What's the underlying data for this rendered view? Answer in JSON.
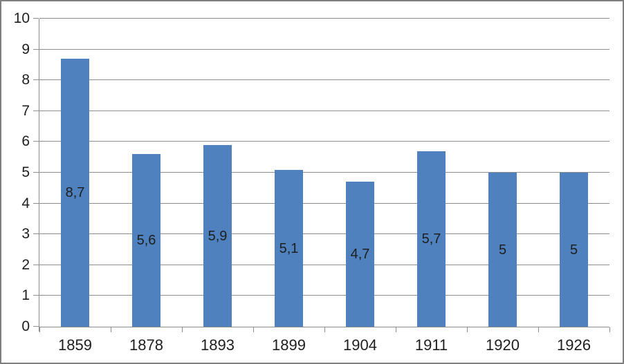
{
  "chart_data": {
    "type": "bar",
    "title": "",
    "xlabel": "",
    "ylabel": "",
    "categories": [
      "1859",
      "1878",
      "1893",
      "1899",
      "1904",
      "1911",
      "1920",
      "1926"
    ],
    "values": [
      8.7,
      5.6,
      5.9,
      5.1,
      4.7,
      5.7,
      5,
      5
    ],
    "data_labels": [
      "8,7",
      "5,6",
      "5,9",
      "5,1",
      "4,7",
      "5,7",
      "5",
      "5"
    ],
    "data_label_position": "center-inside-bar",
    "ylim": [
      0,
      10
    ],
    "y_ticks": [
      0,
      1,
      2,
      3,
      4,
      5,
      6,
      7,
      8,
      9,
      10
    ],
    "y_tick_labels": [
      "0",
      "1",
      "2",
      "3",
      "4",
      "5",
      "6",
      "7",
      "8",
      "9",
      "10"
    ],
    "grid": true,
    "legend": false,
    "colors": {
      "bar_fill": "#4e81bd",
      "gridline": "#8c8c8c",
      "axis_line": "#8c8c8c",
      "text": "#1e1e1e",
      "frame_border": "#7f7f7f",
      "background": "#ffffff"
    }
  }
}
